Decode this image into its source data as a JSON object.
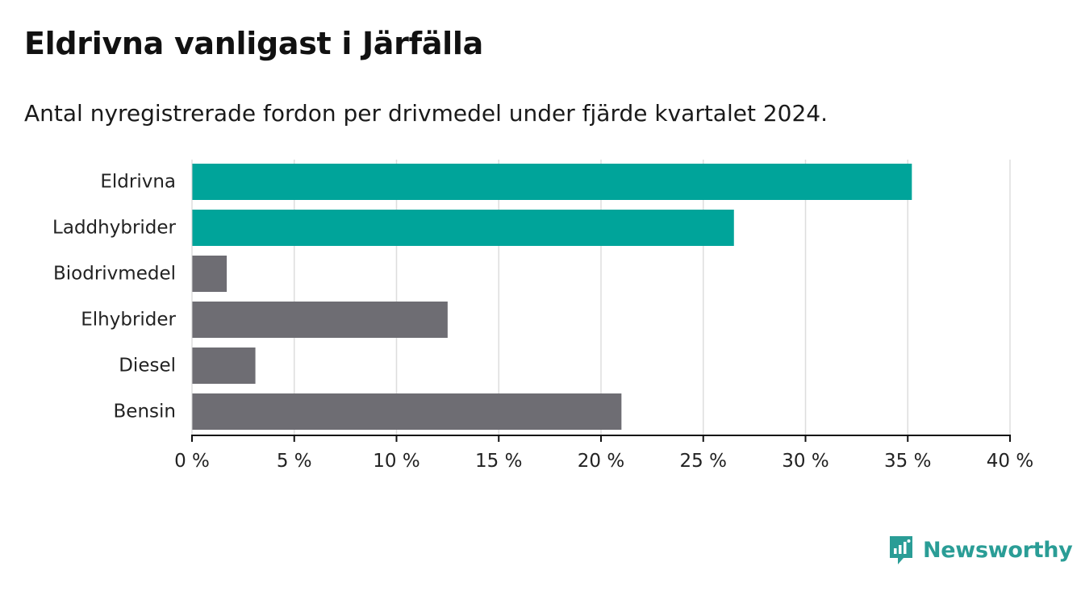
{
  "title": "Eldrivna vanligast i Järfälla",
  "subtitle": "Antal nyregistrerade fordon per drivmedel under fjärde kvartalet 2024.",
  "brand": {
    "name": "Newsworthy",
    "color": "#2a9d96"
  },
  "colors": {
    "highlight": "#00a49a",
    "default": "#6e6d73",
    "grid": "#dddddd",
    "axis": "#111111"
  },
  "chart_data": {
    "type": "bar",
    "orientation": "horizontal",
    "categories": [
      "Eldrivna",
      "Laddhybrider",
      "Biodrivmedel",
      "Elhybrider",
      "Diesel",
      "Bensin"
    ],
    "values": [
      35.2,
      26.5,
      1.7,
      12.5,
      3.1,
      21.0
    ],
    "highlighted": [
      true,
      true,
      false,
      false,
      false,
      false
    ],
    "xlim": [
      0,
      40
    ],
    "xticks": [
      0,
      5,
      10,
      15,
      20,
      25,
      30,
      35,
      40
    ],
    "tick_labels": [
      "0 %",
      "5 %",
      "10 %",
      "15 %",
      "20 %",
      "25 %",
      "30 %",
      "35 %",
      "40 %"
    ],
    "xlabel": "",
    "ylabel": "",
    "grid": true
  }
}
